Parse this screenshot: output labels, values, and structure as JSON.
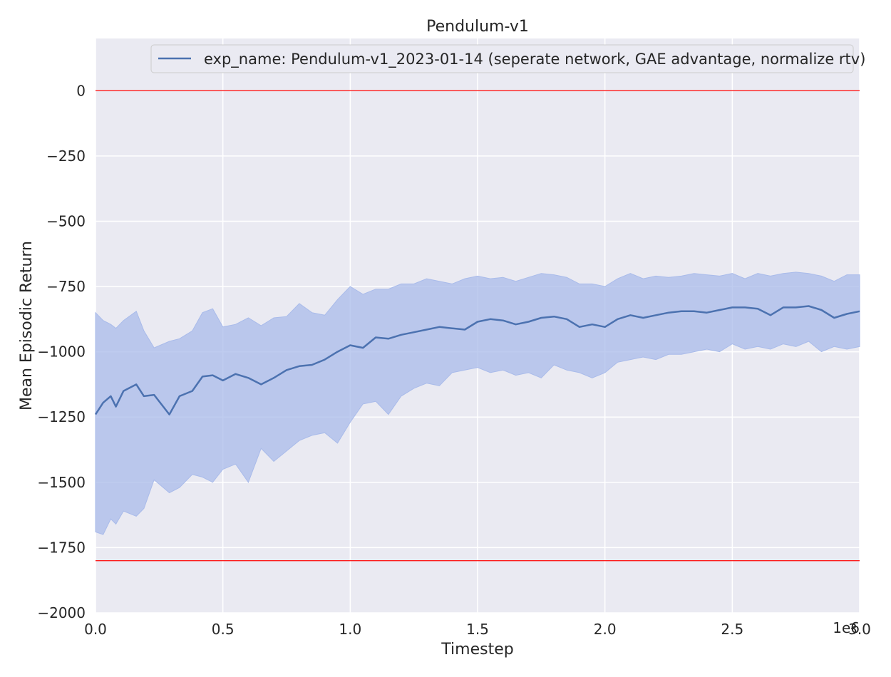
{
  "chart_data": {
    "type": "line",
    "title": "Pendulum-v1",
    "xlabel": "Timestep",
    "ylabel": "Mean Episodic Return",
    "x_offset_label": "1e6",
    "xlim": [
      0,
      3.0
    ],
    "ylim": [
      -2000,
      200
    ],
    "xticks": [
      0,
      0.5,
      1.0,
      1.5,
      2.0,
      2.5,
      3.0
    ],
    "xtick_labels": [
      "0.0",
      "0.5",
      "1.0",
      "1.5",
      "2.0",
      "2.5",
      "3.0"
    ],
    "yticks": [
      0,
      -250,
      -500,
      -750,
      -1000,
      -1250,
      -1500,
      -1750,
      -2000
    ],
    "ytick_labels": [
      "0",
      "−250",
      "−500",
      "−750",
      "−1000",
      "−1250",
      "−1500",
      "−1750",
      "−2000"
    ],
    "grid": true,
    "legend_position": "top-right",
    "reference_lines": [
      0,
      -1800
    ],
    "series": [
      {
        "name": "exp_name: Pendulum-v1_2023-01-14 (seperate network, GAE advantage, normalize rtv)",
        "color": "#4c72b0",
        "band_color": "#a9bbea",
        "x": [
          0,
          0.03,
          0.06,
          0.08,
          0.11,
          0.16,
          0.19,
          0.23,
          0.29,
          0.33,
          0.38,
          0.42,
          0.46,
          0.5,
          0.55,
          0.6,
          0.65,
          0.7,
          0.75,
          0.8,
          0.85,
          0.9,
          0.95,
          1.0,
          1.05,
          1.1,
          1.15,
          1.2,
          1.25,
          1.3,
          1.35,
          1.4,
          1.45,
          1.5,
          1.55,
          1.6,
          1.65,
          1.7,
          1.75,
          1.8,
          1.85,
          1.9,
          1.95,
          2.0,
          2.05,
          2.1,
          2.15,
          2.2,
          2.25,
          2.3,
          2.35,
          2.4,
          2.45,
          2.5,
          2.55,
          2.6,
          2.65,
          2.7,
          2.75,
          2.8,
          2.85,
          2.9,
          2.95,
          3.0
        ],
        "mean": [
          -1240,
          -1195,
          -1170,
          -1210,
          -1150,
          -1125,
          -1170,
          -1165,
          -1240,
          -1170,
          -1150,
          -1095,
          -1090,
          -1110,
          -1085,
          -1100,
          -1125,
          -1100,
          -1070,
          -1055,
          -1050,
          -1030,
          -1000,
          -975,
          -985,
          -945,
          -950,
          -935,
          -925,
          -915,
          -905,
          -910,
          -915,
          -885,
          -875,
          -880,
          -895,
          -885,
          -870,
          -865,
          -875,
          -905,
          -895,
          -905,
          -875,
          -860,
          -870,
          -860,
          -850,
          -845,
          -845,
          -850,
          -840,
          -830,
          -830,
          -835,
          -860,
          -830,
          -830,
          -825,
          -840,
          -870,
          -855,
          -845
        ],
        "upper": [
          -850,
          -880,
          -895,
          -910,
          -880,
          -845,
          -920,
          -985,
          -960,
          -950,
          -920,
          -850,
          -835,
          -905,
          -895,
          -870,
          -900,
          -870,
          -865,
          -815,
          -850,
          -860,
          -800,
          -750,
          -780,
          -760,
          -760,
          -740,
          -740,
          -720,
          -730,
          -740,
          -720,
          -710,
          -720,
          -715,
          -730,
          -715,
          -700,
          -705,
          -715,
          -740,
          -740,
          -750,
          -720,
          -700,
          -720,
          -710,
          -715,
          -710,
          -700,
          -705,
          -710,
          -700,
          -720,
          -700,
          -710,
          -700,
          -695,
          -700,
          -710,
          -730,
          -705,
          -705
        ],
        "lower": [
          -1690,
          -1700,
          -1640,
          -1660,
          -1610,
          -1630,
          -1600,
          -1490,
          -1540,
          -1520,
          -1470,
          -1480,
          -1500,
          -1450,
          -1430,
          -1500,
          -1370,
          -1420,
          -1380,
          -1340,
          -1320,
          -1310,
          -1350,
          -1270,
          -1200,
          -1190,
          -1240,
          -1170,
          -1140,
          -1120,
          -1130,
          -1080,
          -1070,
          -1060,
          -1080,
          -1070,
          -1090,
          -1080,
          -1100,
          -1050,
          -1070,
          -1080,
          -1100,
          -1080,
          -1040,
          -1030,
          -1020,
          -1030,
          -1010,
          -1010,
          -1000,
          -990,
          -1000,
          -970,
          -990,
          -980,
          -990,
          -970,
          -980,
          -960,
          -1000,
          -980,
          -990,
          -980
        ]
      }
    ]
  }
}
